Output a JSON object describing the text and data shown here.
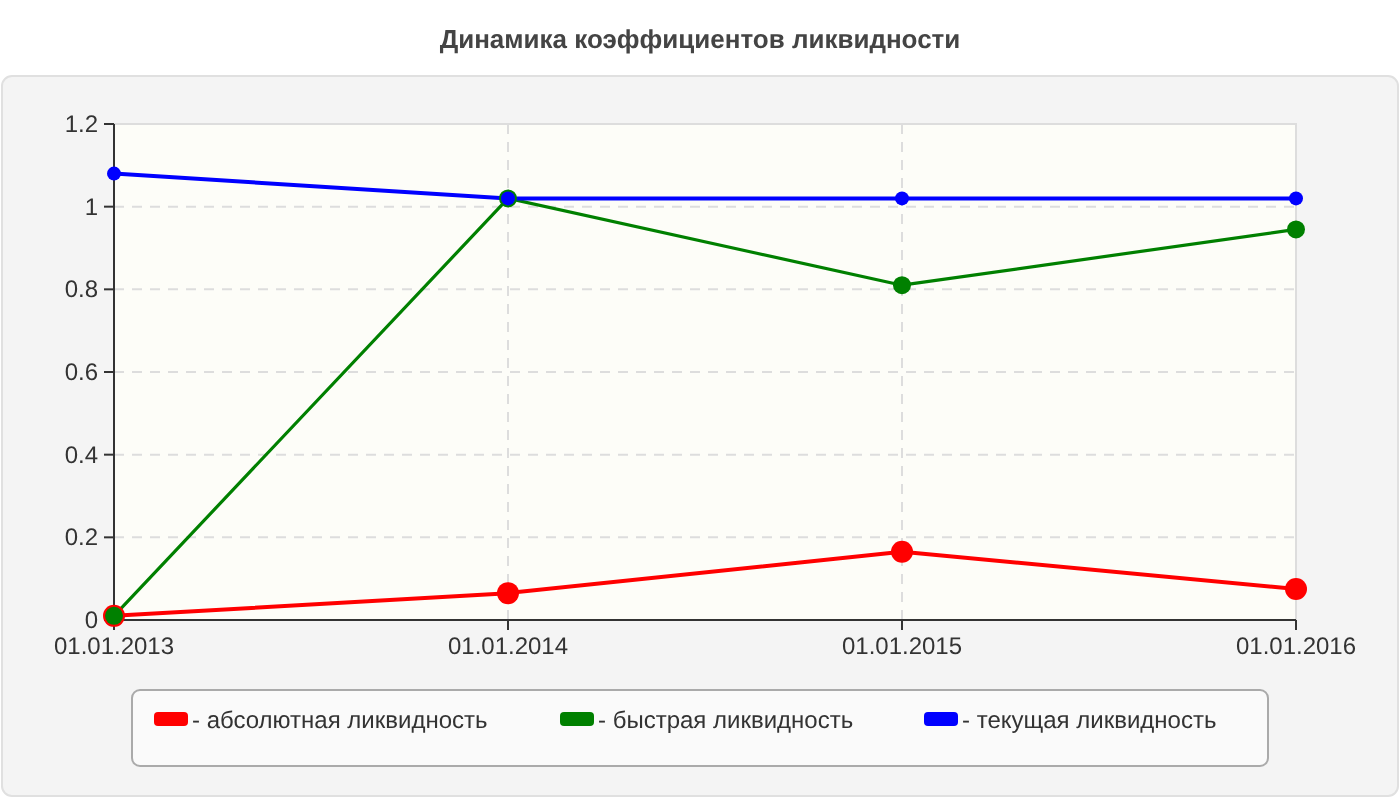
{
  "chart_data": {
    "type": "line",
    "title": "Динамика коэффициентов ликвидности",
    "categories": [
      "01.01.2013",
      "01.01.2014",
      "01.01.2015",
      "01.01.2016"
    ],
    "series": [
      {
        "name": "- абсолютная ликвидность",
        "color": "#ff0000",
        "values": [
          0.01,
          0.065,
          0.165,
          0.075
        ]
      },
      {
        "name": "- быстрая ликвидность",
        "color": "#008000",
        "values": [
          0.01,
          1.02,
          0.81,
          0.945
        ]
      },
      {
        "name": "- текущая ликвидность",
        "color": "#0000ff",
        "values": [
          1.08,
          1.02,
          1.02,
          1.02
        ]
      }
    ],
    "ylim": [
      0,
      1.2
    ],
    "yticks": [
      0,
      0.2,
      0.4,
      0.6,
      0.8,
      1,
      1.2
    ],
    "grid": true,
    "legend": "bottom",
    "marker": "circle",
    "line_style": "solid"
  }
}
